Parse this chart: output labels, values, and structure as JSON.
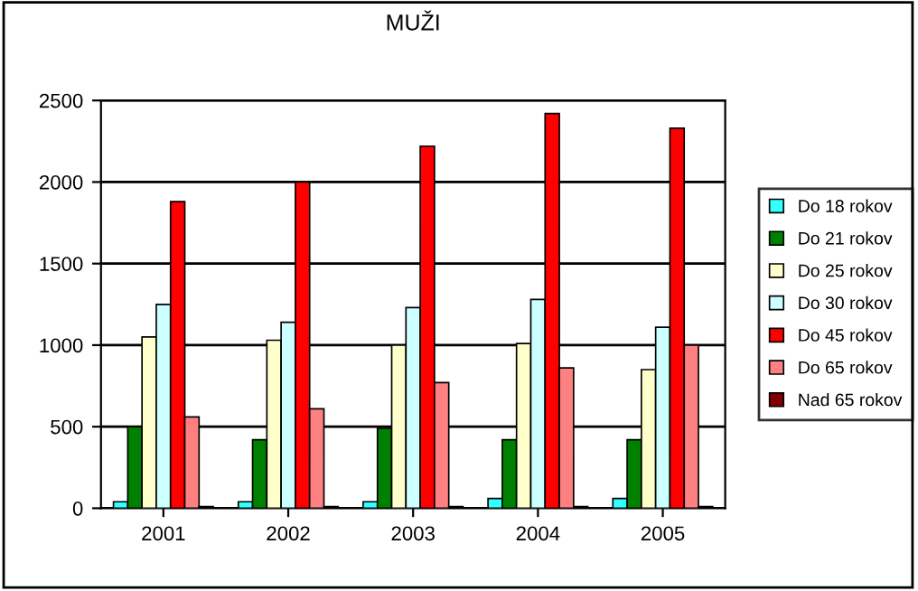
{
  "chart_data": {
    "type": "bar",
    "title": "MUŽI",
    "categories": [
      "2001",
      "2002",
      "2003",
      "2004",
      "2005"
    ],
    "series": [
      {
        "name": "Do 18 rokov",
        "color": "#33ffff",
        "values": [
          40,
          40,
          40,
          60,
          60
        ]
      },
      {
        "name": "Do 21 rokov",
        "color": "#008000",
        "values": [
          500,
          420,
          490,
          420,
          420
        ]
      },
      {
        "name": "Do 25 rokov",
        "color": "#ffffcc",
        "values": [
          1050,
          1030,
          1000,
          1010,
          850
        ]
      },
      {
        "name": "Do 30 rokov",
        "color": "#ccffff",
        "values": [
          1250,
          1140,
          1230,
          1280,
          1110
        ]
      },
      {
        "name": "Do 45 rokov",
        "color": "#ff0000",
        "values": [
          1880,
          2000,
          2220,
          2420,
          2330
        ]
      },
      {
        "name": "Do 65 rokov",
        "color": "#ff8080",
        "values": [
          560,
          610,
          770,
          860,
          1000
        ]
      },
      {
        "name": "Nad 65 rokov",
        "color": "#800000",
        "values": [
          10,
          10,
          10,
          10,
          10
        ]
      }
    ],
    "ylim": [
      0,
      2500
    ],
    "yticks": [
      0,
      500,
      1000,
      1500,
      2000,
      2500
    ],
    "grid": "y",
    "legend": "right"
  }
}
